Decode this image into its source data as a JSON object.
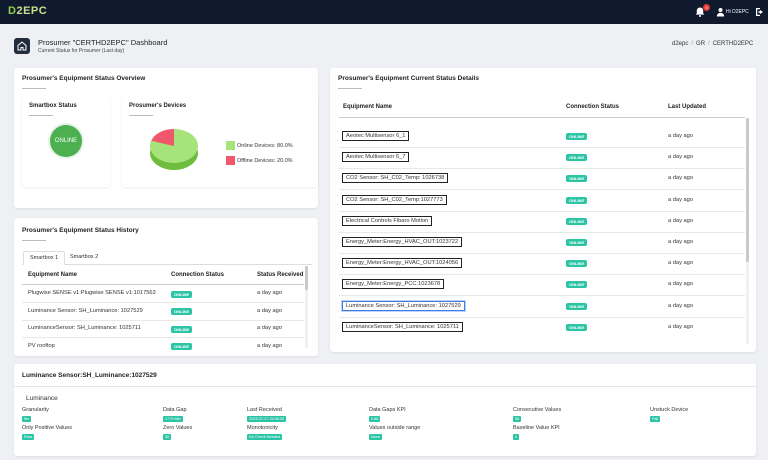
{
  "header": {
    "logo_text_a": "D",
    "logo_text_b": "2EPC",
    "notification_count": "5",
    "user_label": "Hi D2EPC"
  },
  "page": {
    "title": "Prosumer \"CERTHD2EPC\" Dashboard",
    "subtitle": "Current Status for Prosumer (Last day)",
    "breadcrumb": [
      "d2epc",
      "GR",
      "CERTHD2EPC"
    ]
  },
  "overview": {
    "title": "Prosumer's Equipment Status Overview",
    "smartbox_title": "Smartbox Status",
    "smartbox_status": "ONLINE",
    "devices_title": "Prosumer's Devices",
    "online_label": "Online Devices:  80.0%",
    "offline_label": "Offline Devices:  20.0%",
    "online_fraction": 0.8,
    "colors": {
      "online": "#a6e37a",
      "offline": "#f0576b"
    }
  },
  "history": {
    "title": "Prosumer's Equipment Status History",
    "tabs": [
      "Smartbox 1",
      "Smartbox 2"
    ],
    "columns": [
      "Equipment Name",
      "Connection Status",
      "Status Received"
    ],
    "rows": [
      {
        "name": "Plugwise SENSE v1:Plugwise SENSE v1:1017563",
        "status": "ONLINE",
        "received": "a day ago"
      },
      {
        "name": "Luminance Sensor: SH_Luminance: 1027529",
        "status": "ONLINE",
        "received": "a day ago"
      },
      {
        "name": "LuminanceSensor: SH_Luminance: 1025711",
        "status": "ONLINE",
        "received": "a day ago"
      },
      {
        "name": "PV  rooftop",
        "status": "ONLINE",
        "received": "a day ago"
      }
    ]
  },
  "details": {
    "title": "Prosumer's Equipment Current Status Details",
    "columns": [
      "Equipment Name",
      "Connection Status",
      "Last Updated"
    ],
    "rows": [
      {
        "name": "Aeotec Multisensor 6_1",
        "status": "ONLINE",
        "updated": "a day ago"
      },
      {
        "name": "Aeotec Multisensor 6_7",
        "status": "ONLINE",
        "updated": "a day ago"
      },
      {
        "name": "CO2 Sensor: SH_C02_Temp: 1026738",
        "status": "ONLINE",
        "updated": "a day ago"
      },
      {
        "name": "CO2 Sensor: SH_C02_Temp:1027773",
        "status": "ONLINE",
        "updated": "a day ago"
      },
      {
        "name": "Electrical Controls Fibaro Motion",
        "status": "ONLINE",
        "updated": "a day ago"
      },
      {
        "name": "Energy_Meter:Energy_HVAC_OUT:1023722",
        "status": "ONLINE",
        "updated": "a day ago"
      },
      {
        "name": "Energy_Meter:Energy_HVAC_OUT:1024056",
        "status": "ONLINE",
        "updated": "a day ago"
      },
      {
        "name": "Energy_Meter:Energy_PCC:1023678",
        "status": "ONLINE",
        "updated": "a day ago"
      },
      {
        "name": "Luminance Sensor: SH_Luminance: 1027529",
        "status": "ONLINE",
        "updated": "a day ago"
      },
      {
        "name": "LuminanceSensor: SH_Luminance: 1025711",
        "status": "ONLINE",
        "updated": "a day ago"
      }
    ]
  },
  "sensor": {
    "title": "Luminance Sensor:SH_Luminance:1027529",
    "subtitle": "Luminance",
    "kpis": [
      {
        "label": "Granularity",
        "value": "5m"
      },
      {
        "label": "Data Gap",
        "value": "1770 Min"
      },
      {
        "label": "Last Received",
        "value": "2023-07-27 22:00:00"
      },
      {
        "label": "Data Gaps KPI",
        "value": "0.86"
      },
      {
        "label": "Consecutive Values",
        "value": "58"
      },
      {
        "label": "Unstuck Device",
        "value": "Fail"
      },
      {
        "label": "Only Positive Values",
        "value": "Pass"
      },
      {
        "label": "Zero Values",
        "value": "30"
      },
      {
        "label": "Monotonicity",
        "value": "No Check Needed"
      },
      {
        "label": "Values outside range",
        "value": "None"
      },
      {
        "label": "Baseline Value KPI",
        "value": "0"
      }
    ]
  }
}
